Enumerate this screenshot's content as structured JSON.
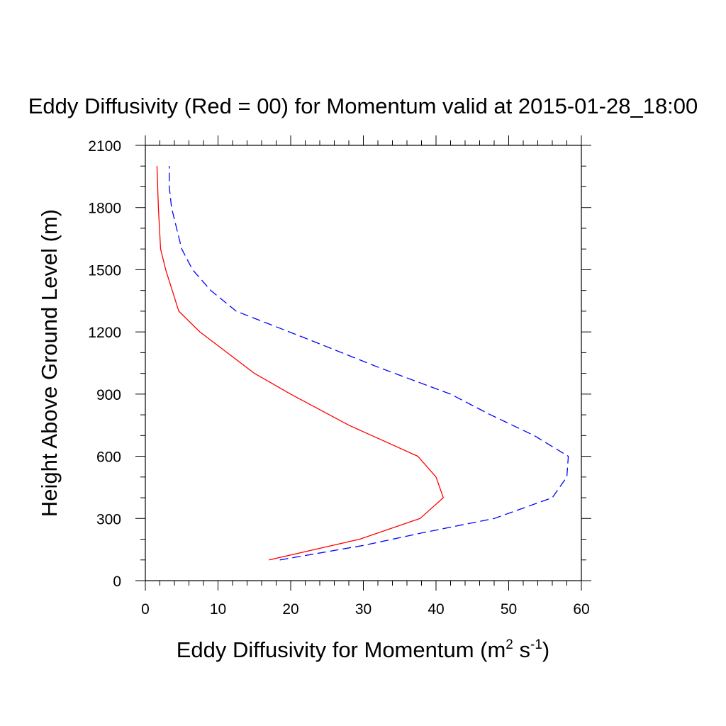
{
  "chart_data": {
    "type": "line",
    "title": "Eddy Diffusivity (Red = 00) for Momentum valid at 2015-01-28_18:00",
    "xlabel": {
      "main": "Eddy Diffusivity for Momentum (m",
      "sup1": "2",
      "mid": " s",
      "sup2": "-1",
      "end": ")"
    },
    "ylabel": "Height Above Ground Level (m)",
    "xlim": [
      0,
      60
    ],
    "ylim": [
      0,
      2100
    ],
    "xticks": [
      0,
      10,
      20,
      30,
      40,
      50,
      60
    ],
    "yticks": [
      0,
      300,
      600,
      900,
      1200,
      1500,
      1800,
      2100
    ],
    "x_minor_step": 2,
    "y_minor_step": 100,
    "grid": false,
    "series": [
      {
        "color": "#ff0000",
        "dash": "solid",
        "points": [
          [
            17,
            100
          ],
          [
            29.5,
            200
          ],
          [
            37.8,
            300
          ],
          [
            41,
            400
          ],
          [
            40,
            500
          ],
          [
            37.5,
            600
          ],
          [
            28,
            750
          ],
          [
            20,
            900
          ],
          [
            15,
            1000
          ],
          [
            7.5,
            1200
          ],
          [
            4.6,
            1300
          ],
          [
            2.8,
            1500
          ],
          [
            2.1,
            1600
          ],
          [
            1.8,
            1800
          ],
          [
            1.6,
            2000
          ]
        ]
      },
      {
        "color": "#0000ff",
        "dash": "dashed",
        "points": [
          [
            18.5,
            100
          ],
          [
            30,
            170
          ],
          [
            38,
            230
          ],
          [
            48,
            300
          ],
          [
            56,
            400
          ],
          [
            58,
            500
          ],
          [
            58.2,
            600
          ],
          [
            53.5,
            700
          ],
          [
            47.5,
            800
          ],
          [
            42,
            900
          ],
          [
            32,
            1030
          ],
          [
            22,
            1170
          ],
          [
            12.5,
            1300
          ],
          [
            9,
            1400
          ],
          [
            6.5,
            1500
          ],
          [
            5,
            1600
          ],
          [
            4.3,
            1700
          ],
          [
            3.6,
            1800
          ],
          [
            3.3,
            1900
          ],
          [
            3.3,
            2000
          ]
        ]
      }
    ]
  }
}
